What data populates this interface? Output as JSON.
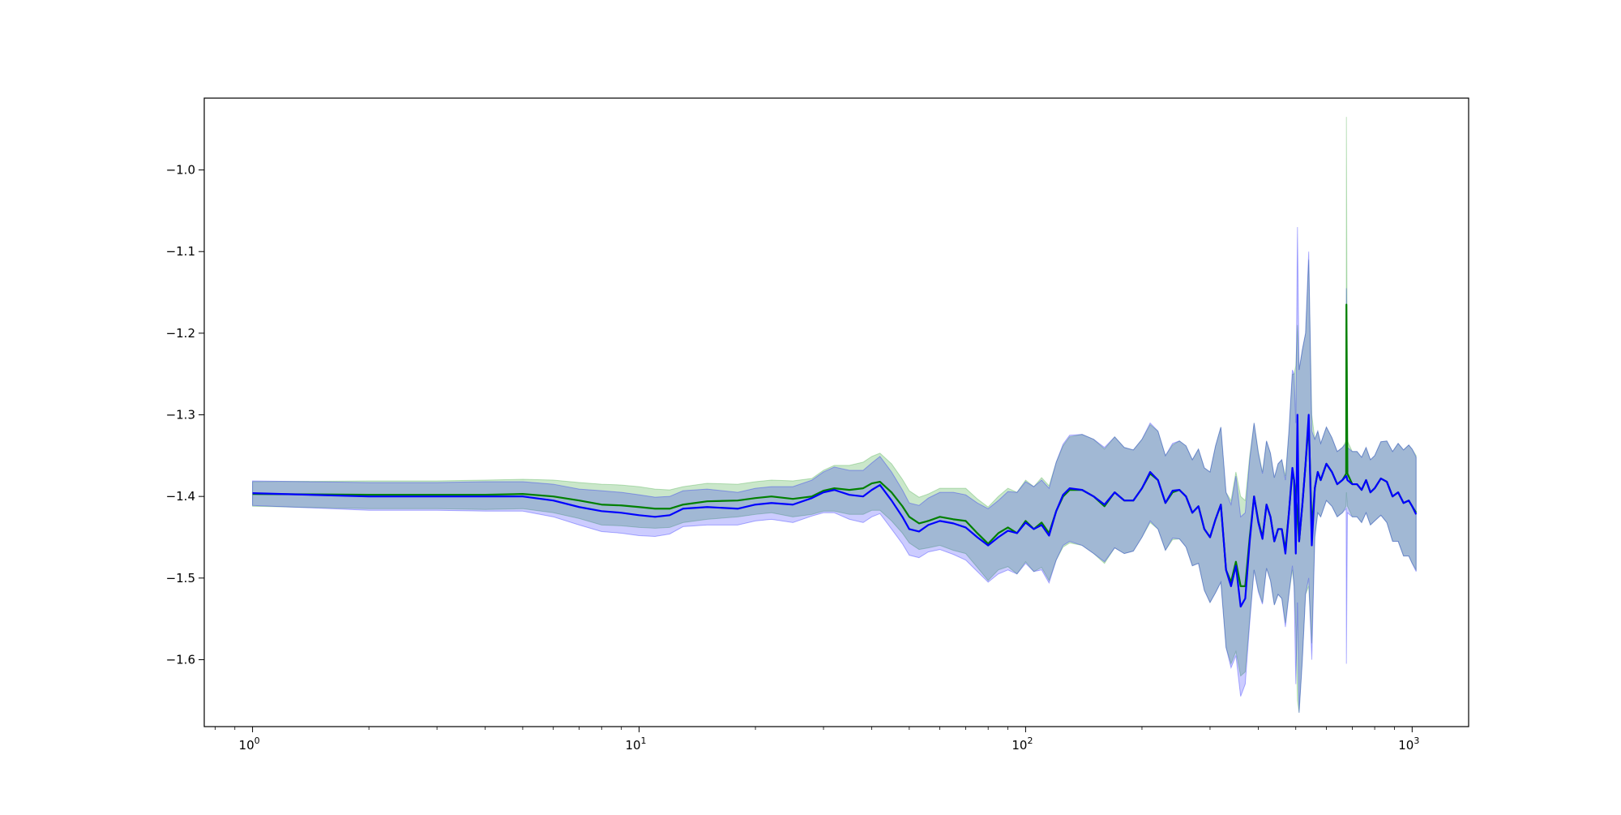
{
  "chart_data": {
    "type": "line",
    "title": "",
    "xlabel": "",
    "ylabel": "",
    "x_scale": "log",
    "xlim": [
      0.75,
      1400
    ],
    "ylim": [
      -1.682,
      -0.912
    ],
    "grid": false,
    "x_ticks": [
      {
        "value": 1,
        "base": "10",
        "exp": "0"
      },
      {
        "value": 10,
        "base": "10",
        "exp": "1"
      },
      {
        "value": 100,
        "base": "10",
        "exp": "2"
      },
      {
        "value": 1000,
        "base": "10",
        "exp": "3"
      }
    ],
    "y_ticks": [
      {
        "value": -1.0,
        "label": "−1.0"
      },
      {
        "value": -1.1,
        "label": "−1.1"
      },
      {
        "value": -1.2,
        "label": "−1.2"
      },
      {
        "value": -1.3,
        "label": "−1.3"
      },
      {
        "value": -1.4,
        "label": "−1.4"
      },
      {
        "value": -1.5,
        "label": "−1.5"
      },
      {
        "value": -1.6,
        "label": "−1.6"
      }
    ],
    "series": [
      {
        "color": "#008000",
        "band_color": "#2ca02c",
        "x": [
          1,
          2,
          3,
          4,
          5,
          6,
          7,
          8,
          9,
          10,
          11,
          12,
          13,
          15,
          18,
          20,
          22,
          25,
          28,
          30,
          32,
          35,
          38,
          40,
          42,
          45,
          48,
          50,
          53,
          56,
          60,
          65,
          70,
          75,
          80,
          85,
          90,
          95,
          100,
          105,
          110,
          115,
          120,
          125,
          130,
          140,
          150,
          160,
          170,
          180,
          190,
          200,
          210,
          220,
          230,
          240,
          250,
          260,
          270,
          280,
          290,
          300,
          310,
          320,
          330,
          340,
          350,
          360,
          370,
          380,
          390,
          400,
          410,
          420,
          430,
          440,
          450,
          460,
          470,
          480,
          490,
          495,
          500,
          505,
          510,
          520,
          530,
          540,
          550,
          560,
          570,
          580,
          600,
          620,
          640,
          660,
          675,
          676,
          680,
          700,
          720,
          740,
          760,
          780,
          800,
          830,
          860,
          890,
          920,
          950,
          980,
          1000,
          1024
        ],
        "y": [
          -1.397,
          -1.398,
          -1.398,
          -1.398,
          -1.397,
          -1.4,
          -1.405,
          -1.41,
          -1.411,
          -1.413,
          -1.415,
          -1.415,
          -1.41,
          -1.406,
          -1.405,
          -1.402,
          -1.4,
          -1.403,
          -1.4,
          -1.393,
          -1.39,
          -1.392,
          -1.39,
          -1.384,
          -1.382,
          -1.395,
          -1.412,
          -1.425,
          -1.433,
          -1.43,
          -1.425,
          -1.428,
          -1.43,
          -1.445,
          -1.458,
          -1.445,
          -1.438,
          -1.445,
          -1.43,
          -1.44,
          -1.432,
          -1.445,
          -1.418,
          -1.4,
          -1.392,
          -1.392,
          -1.4,
          -1.412,
          -1.395,
          -1.405,
          -1.405,
          -1.39,
          -1.372,
          -1.38,
          -1.408,
          -1.395,
          -1.392,
          -1.4,
          -1.42,
          -1.412,
          -1.44,
          -1.45,
          -1.428,
          -1.41,
          -1.49,
          -1.505,
          -1.48,
          -1.51,
          -1.51,
          -1.45,
          -1.4,
          -1.43,
          -1.45,
          -1.41,
          -1.425,
          -1.455,
          -1.44,
          -1.44,
          -1.465,
          -1.42,
          -1.37,
          -1.38,
          -1.4,
          -1.42,
          -1.455,
          -1.41,
          -1.36,
          -1.31,
          -1.44,
          -1.39,
          -1.37,
          -1.38,
          -1.36,
          -1.37,
          -1.385,
          -1.38,
          -1.372,
          -1.165,
          -1.372,
          -1.385,
          -1.385,
          -1.392,
          -1.38,
          -1.395,
          -1.39,
          -1.378,
          -1.382,
          -1.4,
          -1.395,
          -1.408,
          -1.405,
          -1.412,
          -1.42
        ]
      },
      {
        "color": "#0000ff",
        "band_color": "#0000ff",
        "x": [
          1,
          2,
          3,
          4,
          5,
          6,
          7,
          8,
          9,
          10,
          11,
          12,
          13,
          15,
          18,
          20,
          22,
          25,
          28,
          30,
          32,
          35,
          38,
          40,
          42,
          45,
          48,
          50,
          53,
          56,
          60,
          65,
          70,
          75,
          80,
          85,
          90,
          95,
          100,
          105,
          110,
          115,
          120,
          125,
          130,
          140,
          150,
          160,
          170,
          180,
          190,
          200,
          210,
          220,
          230,
          240,
          250,
          260,
          270,
          280,
          290,
          300,
          310,
          320,
          330,
          340,
          350,
          360,
          370,
          380,
          390,
          400,
          410,
          420,
          430,
          440,
          450,
          460,
          470,
          480,
          490,
          495,
          500,
          505,
          510,
          520,
          530,
          540,
          550,
          560,
          570,
          580,
          600,
          620,
          640,
          660,
          675,
          676,
          680,
          700,
          720,
          740,
          760,
          780,
          800,
          830,
          860,
          890,
          920,
          950,
          980,
          1000,
          1024
        ],
        "y": [
          -1.396,
          -1.4,
          -1.4,
          -1.4,
          -1.4,
          -1.405,
          -1.413,
          -1.418,
          -1.42,
          -1.423,
          -1.425,
          -1.423,
          -1.415,
          -1.413,
          -1.415,
          -1.41,
          -1.408,
          -1.41,
          -1.402,
          -1.395,
          -1.392,
          -1.398,
          -1.4,
          -1.392,
          -1.386,
          -1.405,
          -1.425,
          -1.44,
          -1.443,
          -1.435,
          -1.43,
          -1.433,
          -1.438,
          -1.45,
          -1.46,
          -1.45,
          -1.442,
          -1.445,
          -1.432,
          -1.44,
          -1.435,
          -1.448,
          -1.418,
          -1.398,
          -1.39,
          -1.392,
          -1.4,
          -1.41,
          -1.395,
          -1.405,
          -1.405,
          -1.39,
          -1.37,
          -1.38,
          -1.408,
          -1.393,
          -1.392,
          -1.4,
          -1.42,
          -1.412,
          -1.44,
          -1.45,
          -1.428,
          -1.41,
          -1.49,
          -1.51,
          -1.485,
          -1.535,
          -1.525,
          -1.455,
          -1.4,
          -1.432,
          -1.452,
          -1.41,
          -1.425,
          -1.455,
          -1.44,
          -1.44,
          -1.47,
          -1.42,
          -1.365,
          -1.38,
          -1.47,
          -1.3,
          -1.455,
          -1.41,
          -1.36,
          -1.3,
          -1.46,
          -1.39,
          -1.37,
          -1.38,
          -1.36,
          -1.37,
          -1.385,
          -1.38,
          -1.375,
          -1.375,
          -1.38,
          -1.385,
          -1.385,
          -1.392,
          -1.38,
          -1.395,
          -1.39,
          -1.378,
          -1.382,
          -1.4,
          -1.395,
          -1.408,
          -1.405,
          -1.412,
          -1.422
        ]
      }
    ],
    "band_halfwidth": [
      0.015,
      0.017,
      0.017,
      0.018,
      0.018,
      0.02,
      0.022,
      0.025,
      0.025,
      0.025,
      0.024,
      0.023,
      0.022,
      0.022,
      0.02,
      0.02,
      0.02,
      0.022,
      0.022,
      0.025,
      0.028,
      0.03,
      0.032,
      0.033,
      0.035,
      0.035,
      0.033,
      0.032,
      0.032,
      0.033,
      0.035,
      0.038,
      0.04,
      0.042,
      0.045,
      0.045,
      0.048,
      0.05,
      0.05,
      0.052,
      0.055,
      0.058,
      0.06,
      0.062,
      0.065,
      0.068,
      0.07,
      0.07,
      0.068,
      0.065,
      0.062,
      0.06,
      0.06,
      0.06,
      0.058,
      0.058,
      0.06,
      0.062,
      0.065,
      0.07,
      0.075,
      0.08,
      0.09,
      0.095,
      0.095,
      0.1,
      0.11,
      0.11,
      0.105,
      0.1,
      0.09,
      0.085,
      0.08,
      0.078,
      0.078,
      0.078,
      0.08,
      0.085,
      0.09,
      0.1,
      0.12,
      0.13,
      0.16,
      0.23,
      0.21,
      0.19,
      0.16,
      0.2,
      0.14,
      0.06,
      0.05,
      0.045,
      0.045,
      0.042,
      0.04,
      0.04,
      0.04,
      0.23,
      0.04,
      0.04,
      0.04,
      0.04,
      0.04,
      0.04,
      0.04,
      0.045,
      0.05,
      0.055,
      0.06,
      0.065,
      0.068,
      0.07,
      0.07
    ]
  }
}
